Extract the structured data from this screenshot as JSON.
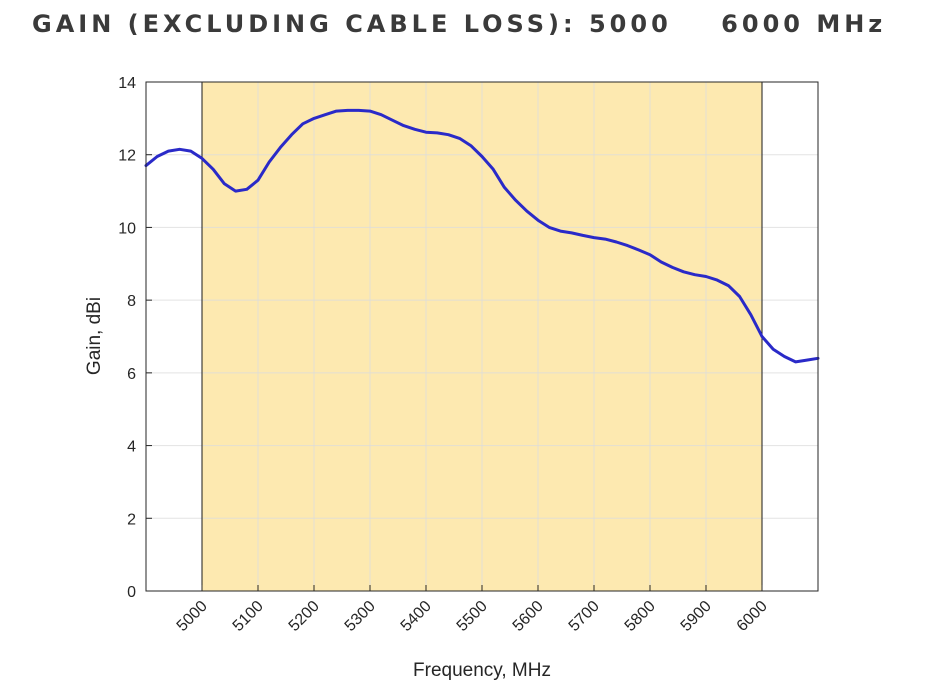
{
  "title": "GAIN (EXCLUDING CABLE LOSS): 5000    6000 MHz",
  "colors": {
    "line": "#2a2ac8",
    "band_fill": "#fde9b0",
    "band_edge": "#1a1a1a",
    "grid": "#dcdcdc",
    "axis": "#262626"
  },
  "chart_data": {
    "type": "line",
    "title": "GAIN (EXCLUDING CABLE LOSS): 5000    6000 MHz",
    "xlabel": "Frequency, MHz",
    "ylabel": "Gain, dBi",
    "xlim": [
      4900,
      6100
    ],
    "ylim": [
      0,
      14
    ],
    "xticks": [
      5000,
      5100,
      5200,
      5300,
      5400,
      5500,
      5600,
      5700,
      5800,
      5900,
      6000
    ],
    "yticks": [
      0,
      2,
      4,
      6,
      8,
      10,
      12,
      14
    ],
    "grid": true,
    "highlight_band": [
      5000,
      6000
    ],
    "series": [
      {
        "x": [
          4900,
          4920,
          4940,
          4960,
          4980,
          5000,
          5020,
          5040,
          5060,
          5080,
          5100,
          5120,
          5140,
          5160,
          5180,
          5200,
          5220,
          5240,
          5260,
          5280,
          5300,
          5320,
          5340,
          5360,
          5380,
          5400,
          5420,
          5440,
          5460,
          5480,
          5500,
          5520,
          5540,
          5560,
          5580,
          5600,
          5620,
          5640,
          5660,
          5680,
          5700,
          5720,
          5740,
          5760,
          5780,
          5800,
          5820,
          5840,
          5860,
          5880,
          5900,
          5920,
          5940,
          5960,
          5980,
          6000,
          6020,
          6040,
          6060,
          6080,
          6100
        ],
        "values": [
          11.7,
          11.95,
          12.1,
          12.15,
          12.1,
          11.9,
          11.6,
          11.2,
          11.0,
          11.05,
          11.3,
          11.8,
          12.2,
          12.55,
          12.85,
          13.0,
          13.1,
          13.2,
          13.22,
          13.22,
          13.2,
          13.1,
          12.95,
          12.8,
          12.7,
          12.62,
          12.6,
          12.55,
          12.45,
          12.25,
          11.95,
          11.6,
          11.1,
          10.75,
          10.45,
          10.2,
          10.0,
          9.9,
          9.85,
          9.78,
          9.72,
          9.68,
          9.6,
          9.5,
          9.38,
          9.25,
          9.05,
          8.9,
          8.78,
          8.7,
          8.65,
          8.55,
          8.4,
          8.1,
          7.6,
          7.0,
          6.65,
          6.45,
          6.3,
          6.35,
          6.4
        ]
      }
    ]
  }
}
